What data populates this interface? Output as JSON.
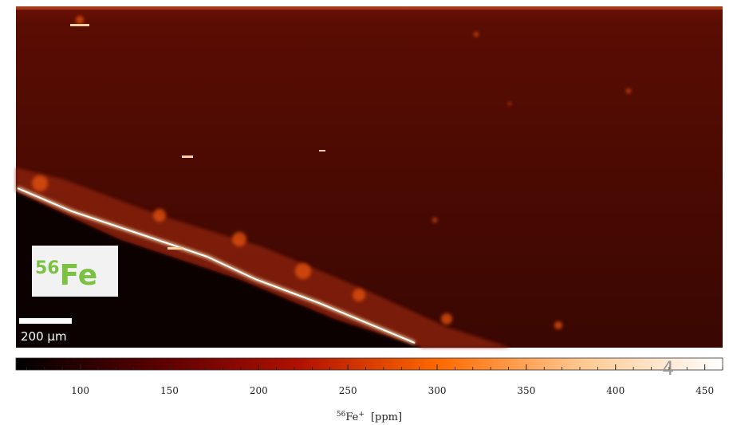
{
  "chart_data": {
    "type": "heatmap",
    "element_label": {
      "mass": "56",
      "symbol": "Fe"
    },
    "scale_bar": "200 μm",
    "stray_text": "4",
    "colorbar": {
      "label": {
        "mass": "56",
        "symbol": "Fe",
        "charge": "+",
        "unit": "[ppm]"
      },
      "clim": [
        64,
        460
      ],
      "colors": [
        "#000000",
        "#5a0000",
        "#b01000",
        "#ff6a00",
        "#ffc890",
        "#ffffff"
      ],
      "ticks": [
        100,
        150,
        200,
        250,
        300,
        350,
        400,
        450
      ],
      "minor_ticks": [
        70,
        80,
        90,
        110,
        120,
        130,
        140,
        160,
        170,
        180,
        190,
        210,
        220,
        230,
        240,
        260,
        270,
        280,
        290,
        310,
        320,
        330,
        340,
        360,
        370,
        380,
        390,
        410,
        420,
        430,
        440,
        460
      ]
    }
  }
}
